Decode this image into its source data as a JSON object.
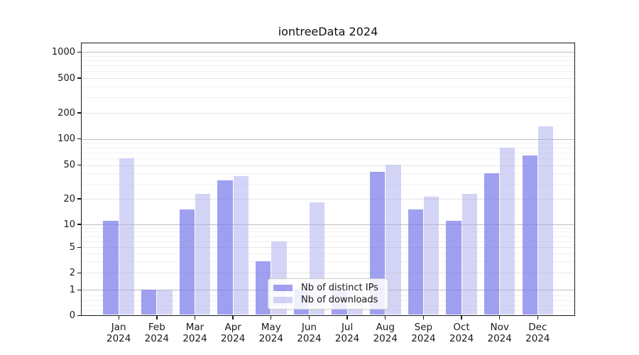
{
  "title": "iontreeData 2024",
  "chart_data": {
    "type": "bar",
    "title": "iontreeData 2024",
    "categories": [
      "Jan 2024",
      "Feb 2024",
      "Mar 2024",
      "Apr 2024",
      "May 2024",
      "Jun 2024",
      "Jul 2024",
      "Aug 2024",
      "Sep 2024",
      "Oct 2024",
      "Nov 2024",
      "Dec 2024"
    ],
    "series": [
      {
        "name": "Nb of distinct IPs",
        "color": "rgba(124,124,234,0.72)",
        "values": [
          11,
          1,
          15,
          33,
          3,
          1,
          1,
          42,
          15,
          11,
          40,
          65
        ]
      },
      {
        "name": "Nb of downloads",
        "color": "rgba(173,173,240,0.52)",
        "values": [
          60,
          1,
          23,
          37,
          6,
          18,
          1,
          51,
          21,
          23,
          80,
          140
        ]
      }
    ],
    "yscale": "symlog",
    "y_ticks": [
      0,
      1,
      2,
      5,
      10,
      20,
      50,
      100,
      200,
      500,
      1000
    ],
    "ylim": [
      0,
      1300
    ],
    "xlabel": "",
    "ylabel": "",
    "grid": true,
    "legend_position": "lower-center",
    "grid_major_color": "#bdbdbd",
    "grid_labeled_color": "#e6e6e6",
    "grid_minor_color": "#f2f2f2"
  }
}
